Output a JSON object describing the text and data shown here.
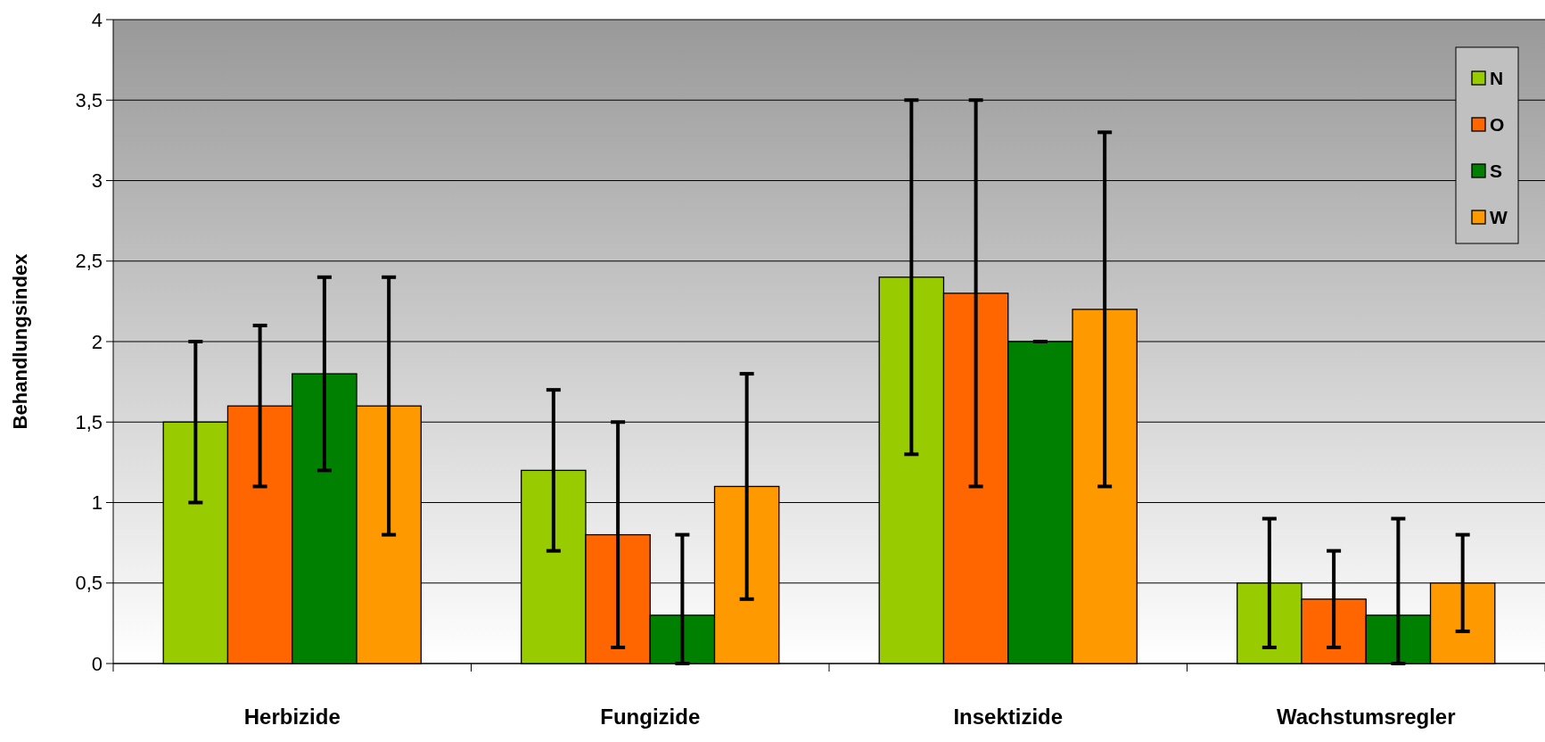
{
  "chart_data": {
    "type": "bar",
    "ylabel": "Behandlungsindex",
    "categories": [
      "Herbizide",
      "Fungizide",
      "Insektizide",
      "Wachstumsregler"
    ],
    "series": [
      {
        "name": "N",
        "color": "#99cc00",
        "values": [
          1.5,
          1.2,
          2.4,
          0.5
        ],
        "errors": [
          [
            1.0,
            2.0
          ],
          [
            0.7,
            1.7
          ],
          [
            1.3,
            3.5
          ],
          [
            0.1,
            0.9
          ]
        ]
      },
      {
        "name": "O",
        "color": "#ff6600",
        "values": [
          1.6,
          0.8,
          2.3,
          0.4
        ],
        "errors": [
          [
            1.1,
            2.1
          ],
          [
            0.1,
            1.5
          ],
          [
            1.1,
            3.5
          ],
          [
            0.1,
            0.7
          ]
        ]
      },
      {
        "name": "S",
        "color": "#008000",
        "values": [
          1.8,
          0.3,
          2.0,
          0.3
        ],
        "errors": [
          [
            1.2,
            2.4
          ],
          [
            0,
            0.8
          ],
          [
            2.0,
            2.0
          ],
          [
            0,
            0.9
          ]
        ]
      },
      {
        "name": "W",
        "color": "#ff9900",
        "values": [
          1.6,
          1.1,
          2.2,
          0.5
        ],
        "errors": [
          [
            0.8,
            2.4
          ],
          [
            0.4,
            1.8
          ],
          [
            1.1,
            3.3
          ],
          [
            0.2,
            0.8
          ]
        ]
      }
    ],
    "ylim": [
      0,
      4
    ],
    "yticks": [
      0,
      {
        "value": 0.5,
        "label": "0,5"
      },
      1,
      {
        "value": 1.5,
        "label": "1,5"
      },
      2,
      {
        "value": 2.5,
        "label": "2,5"
      },
      3,
      {
        "value": 3.5,
        "label": "3,5"
      },
      4
    ],
    "grid": "y",
    "legend": "top right"
  }
}
